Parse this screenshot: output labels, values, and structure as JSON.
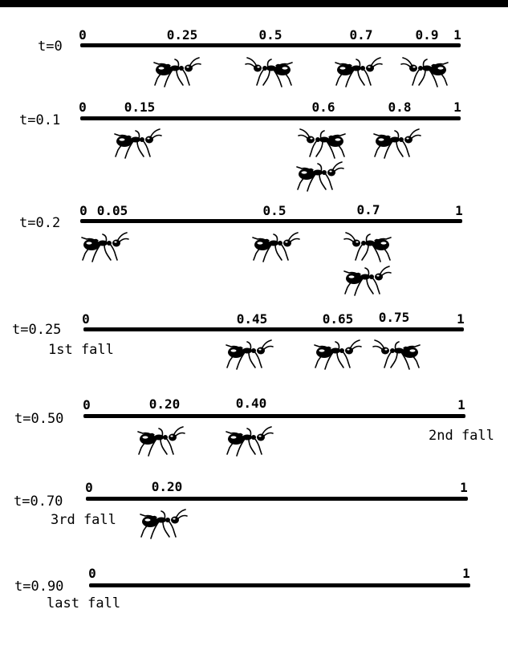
{
  "diagram": {
    "rows": [
      {
        "time": "t=0",
        "note": "",
        "ticks": [
          "0",
          "0.25",
          "0.5",
          "0.7",
          "0.9",
          "1"
        ],
        "ants": [
          {
            "pos": 0.25,
            "dir": "right"
          },
          {
            "pos": 0.5,
            "dir": "left"
          },
          {
            "pos": 0.7,
            "dir": "right"
          },
          {
            "pos": 0.9,
            "dir": "left"
          }
        ]
      },
      {
        "time": "t=0.1",
        "note": "",
        "ticks": [
          "0",
          "0.15",
          "0.6",
          "0.8",
          "1"
        ],
        "ants": [
          {
            "pos": 0.15,
            "dir": "right"
          },
          {
            "pos": 0.6,
            "dir": "left"
          },
          {
            "pos": 0.6,
            "dir": "right",
            "stack": 1
          },
          {
            "pos": 0.8,
            "dir": "right"
          }
        ]
      },
      {
        "time": "t=0.2",
        "note": "",
        "ticks": [
          "0",
          "0.05",
          "0.5",
          "0.7",
          "1"
        ],
        "ants": [
          {
            "pos": 0.05,
            "dir": "right"
          },
          {
            "pos": 0.5,
            "dir": "right"
          },
          {
            "pos": 0.7,
            "dir": "left"
          },
          {
            "pos": 0.7,
            "dir": "right",
            "stack": 1
          }
        ]
      },
      {
        "time": "t=0.25",
        "note": "1st fall",
        "ticks": [
          "0",
          "0.45",
          "0.65",
          "0.75",
          "1"
        ],
        "ants": [
          {
            "pos": 0.45,
            "dir": "right"
          },
          {
            "pos": 0.65,
            "dir": "right"
          },
          {
            "pos": 0.75,
            "dir": "left"
          }
        ]
      },
      {
        "time": "t=0.50",
        "note": "2nd fall",
        "ticks": [
          "0",
          "0.20",
          "0.40",
          "1"
        ],
        "ants": [
          {
            "pos": 0.2,
            "dir": "right"
          },
          {
            "pos": 0.4,
            "dir": "right"
          }
        ]
      },
      {
        "time": "t=0.70",
        "note": "3rd fall",
        "ticks": [
          "0",
          "0.20",
          "1"
        ],
        "ants": [
          {
            "pos": 0.2,
            "dir": "right"
          }
        ]
      },
      {
        "time": "t=0.90",
        "note": "last fall",
        "ticks": [
          "0",
          "1"
        ],
        "ants": []
      }
    ]
  }
}
